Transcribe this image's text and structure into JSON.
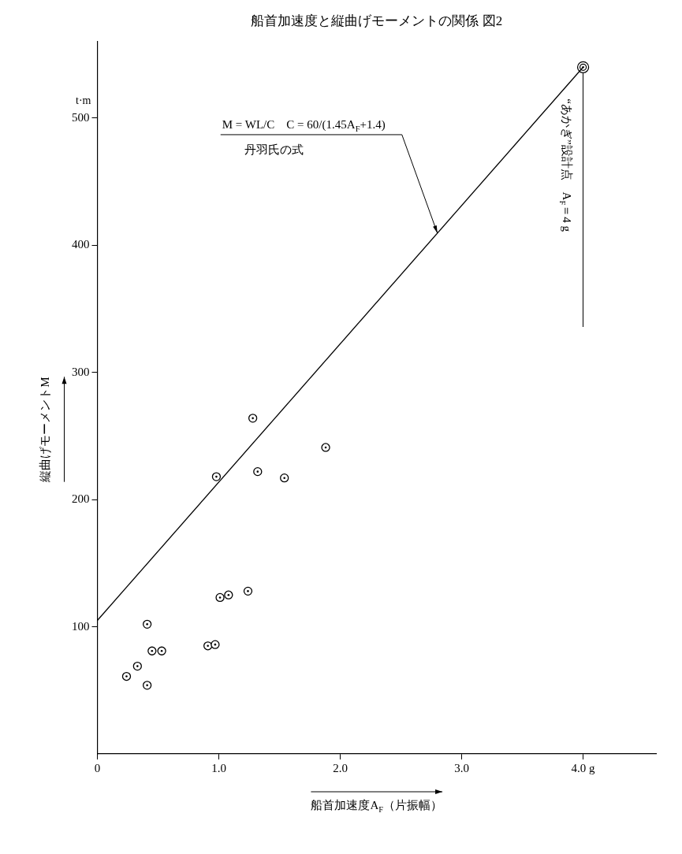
{
  "chart_data": {
    "type": "scatter",
    "title": "船首加速度と縦曲げモーメントの関係 図2",
    "xlabel": "船首加速度A$_{F}$（片振幅）",
    "ylabel": "縦曲げモーメントM",
    "xlim": [
      0,
      4.6
    ],
    "ylim": [
      0,
      560
    ],
    "xticks": [
      0,
      {
        "value": 1,
        "label": "1.0"
      },
      {
        "value": 2,
        "label": "2.0"
      },
      {
        "value": 3,
        "label": "3.0"
      },
      {
        "value": 4,
        "label": "4.0 g"
      }
    ],
    "yticks": [
      100,
      200,
      300,
      400,
      500
    ],
    "grid": false,
    "legend": false,
    "series": [
      {
        "color": "#000000",
        "marker": "circle",
        "x": [
          0.24,
          0.33,
          0.41,
          0.41,
          0.45,
          0.53,
          0.91,
          0.97,
          1.01,
          1.08,
          1.24,
          0.98,
          1.28,
          1.32,
          1.54,
          1.88
        ],
        "values": [
          61,
          69,
          102,
          54,
          81,
          81,
          85,
          86,
          123,
          125,
          128,
          218,
          264,
          222,
          217,
          241
        ]
      },
      {
        "type": "line",
        "color": "#000000",
        "line_style": "solid",
        "x": [
          0,
          4
        ],
        "values": [
          105,
          540
        ]
      },
      {
        "color": "#000000",
        "marker": "circle",
        "x": [
          4
        ],
        "values": [
          540
        ]
      }
    ],
    "annotations": [
      "t·m",
      "M = WL/C　C = 60/(1.45A$_{F}$+1.4)",
      "丹羽氏の式",
      {
        "text": "“あかぎ”設計点　A$_{F}$＝4 g",
        "x": 4,
        "y": 540
      }
    ]
  }
}
